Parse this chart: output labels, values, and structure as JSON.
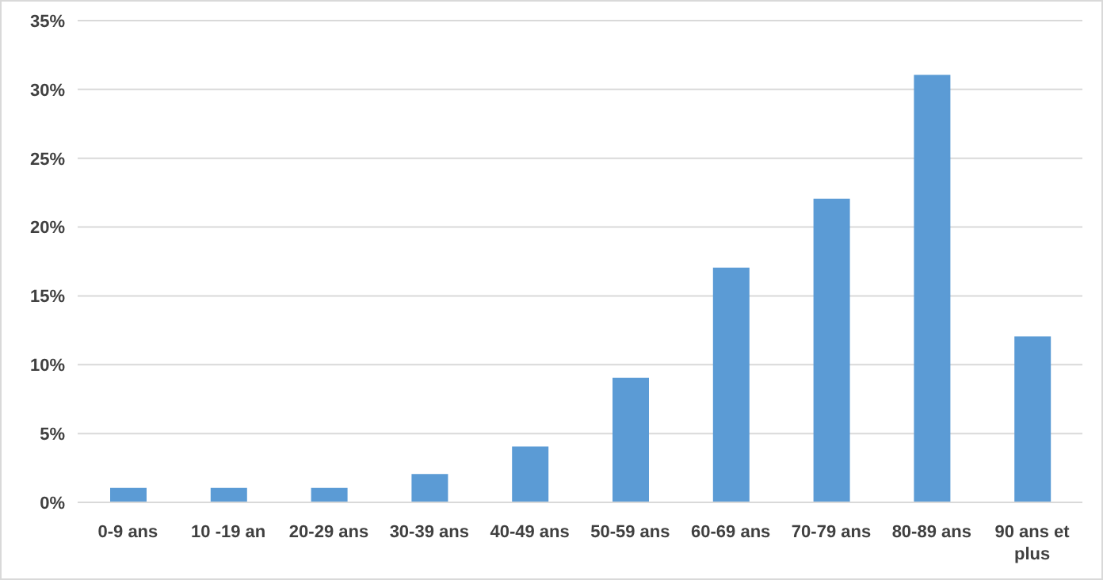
{
  "chart_data": {
    "type": "bar",
    "categories": [
      "0-9 ans",
      "10 -19 an",
      "20-29 ans",
      "30-39 ans",
      "40-49 ans",
      "50-59 ans",
      "60-69 ans",
      "70-79 ans",
      "80-89 ans",
      "90 ans et plus"
    ],
    "values": [
      1,
      1,
      1,
      2,
      4,
      9,
      17,
      22,
      31,
      12
    ],
    "color": "#5b9bd5",
    "ylim": [
      0,
      35
    ],
    "yticks": [
      {
        "value": 0,
        "label": "0%"
      },
      {
        "value": 5,
        "label": "5%"
      },
      {
        "value": 10,
        "label": "10%"
      },
      {
        "value": 15,
        "label": "15%"
      },
      {
        "value": 20,
        "label": "20%"
      },
      {
        "value": 25,
        "label": "25%"
      },
      {
        "value": 30,
        "label": "30%"
      },
      {
        "value": 35,
        "label": "35%"
      }
    ],
    "grid": "y",
    "legend": false
  }
}
